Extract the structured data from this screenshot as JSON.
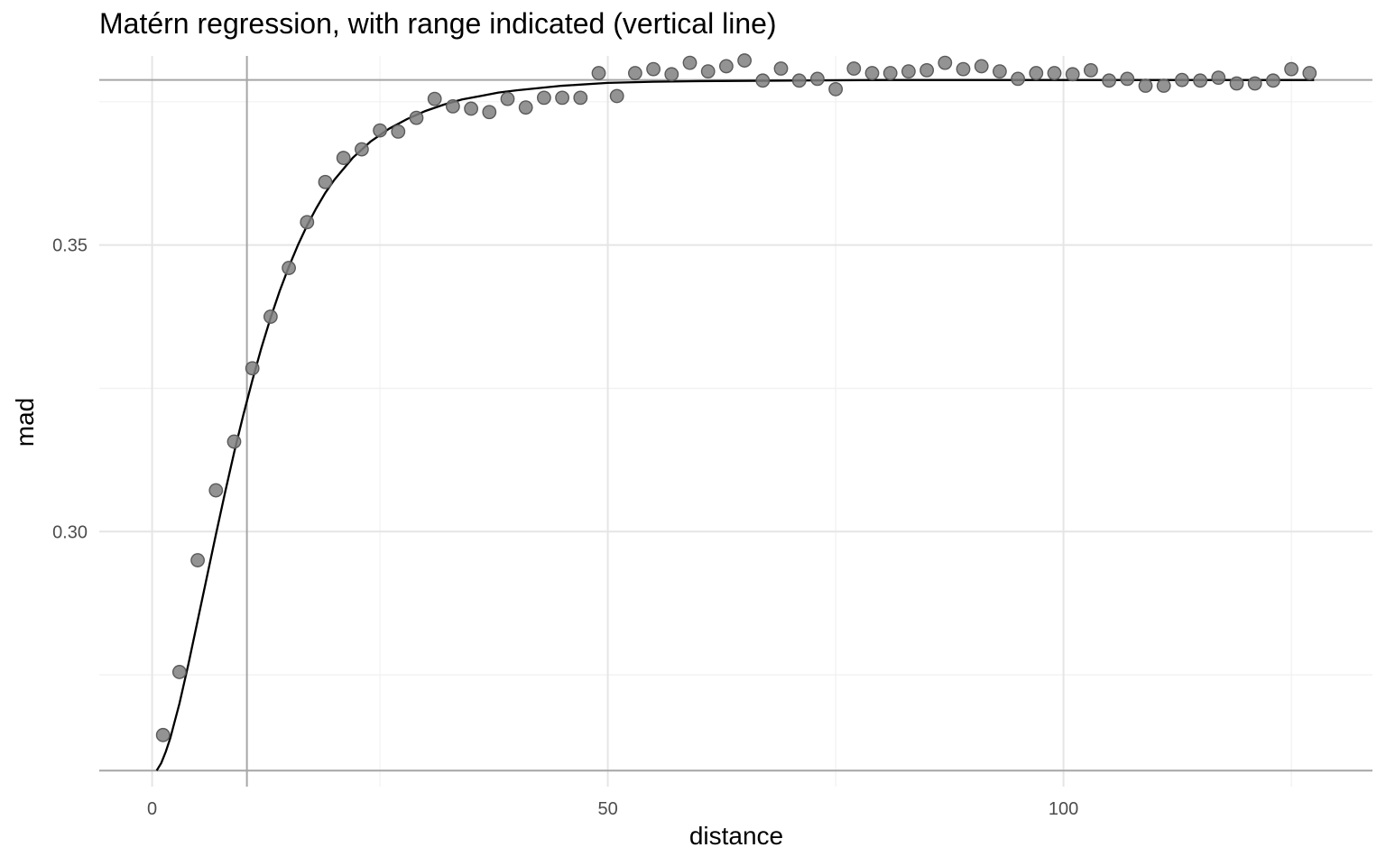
{
  "chart_data": {
    "type": "scatter",
    "title": "Matérn regression, with range indicated (vertical line)",
    "xlabel": "distance",
    "ylabel": "mad",
    "xlim": [
      -5.8,
      133.9
    ],
    "ylim": [
      0.2555,
      0.383
    ],
    "x_ticks": [
      0,
      50,
      100
    ],
    "x_tick_labels": [
      "0",
      "50",
      "100"
    ],
    "y_ticks": [
      0.3,
      0.35
    ],
    "y_tick_labels": [
      "0.30",
      "0.35"
    ],
    "x_minor_gridlines": [
      25,
      75,
      125
    ],
    "y_minor_gridlines": [
      0.275,
      0.325,
      0.375
    ],
    "grid": true,
    "legend": "none",
    "point_color": "#808080",
    "curve_color": "#000000",
    "reference_line_color": "#a6a6a6",
    "range_line_x": 10.4,
    "horizontal_reference_lines": [
      0.3788,
      0.2583
    ],
    "points": {
      "x": [
        1.2,
        3.0,
        5.0,
        7.0,
        9.0,
        11.0,
        13.0,
        15.0,
        17.0,
        19.0,
        21.0,
        23.0,
        25.0,
        27.0,
        29.0,
        31.0,
        33.0,
        35.0,
        37.0,
        39.0,
        41.0,
        43.0,
        45.0,
        47.0,
        49.0,
        51.0,
        53.0,
        55.0,
        57.0,
        59.0,
        61.0,
        63.0,
        65.0,
        67.0,
        69.0,
        71.0,
        73.0,
        75.0,
        77.0,
        79.0,
        81.0,
        83.0,
        85.0,
        87.0,
        89.0,
        91.0,
        93.0,
        95.0,
        97.0,
        99.0,
        101.0,
        103.0,
        105.0,
        107.0,
        109.0,
        111.0,
        113.0,
        115.0,
        117.0,
        119.0,
        121.0,
        123.0,
        125.0,
        127.0
      ],
      "y": [
        0.2645,
        0.2755,
        0.295,
        0.3072,
        0.3157,
        0.3285,
        0.3375,
        0.346,
        0.354,
        0.361,
        0.3652,
        0.3667,
        0.37,
        0.3698,
        0.3722,
        0.3755,
        0.3742,
        0.3738,
        0.3732,
        0.3755,
        0.374,
        0.3757,
        0.3757,
        0.3757,
        0.38,
        0.376,
        0.38,
        0.3807,
        0.3798,
        0.3818,
        0.3803,
        0.3812,
        0.3822,
        0.3787,
        0.3808,
        0.3787,
        0.379,
        0.3772,
        0.3808,
        0.38,
        0.38,
        0.3803,
        0.3805,
        0.3818,
        0.3807,
        0.3812,
        0.3803,
        0.379,
        0.38,
        0.38,
        0.3798,
        0.3805,
        0.3787,
        0.379,
        0.3778,
        0.3778,
        0.3788,
        0.3787,
        0.3792,
        0.3782,
        0.3782,
        0.3787,
        0.3807,
        0.38
      ]
    },
    "fitted_curve": {
      "model": "Matérn",
      "x": [
        0.5,
        1.0,
        1.5,
        2.0,
        3.0,
        4.0,
        5.0,
        6.0,
        7.0,
        8.0,
        9.0,
        10.0,
        11.0,
        12.0,
        13.0,
        14.0,
        15.0,
        16.0,
        17.0,
        18.0,
        19.0,
        20.0,
        22.0,
        24.0,
        26.0,
        28.0,
        30.0,
        32.0,
        34.0,
        36.0,
        38.0,
        40.0,
        45.0,
        50.0,
        55.0,
        60.0,
        70.0,
        80.0,
        90.0,
        100.0,
        110.0,
        120.0,
        127.5
      ],
      "y": [
        0.2583,
        0.2596,
        0.2616,
        0.264,
        0.27,
        0.277,
        0.2845,
        0.292,
        0.2995,
        0.3068,
        0.3138,
        0.3203,
        0.3264,
        0.3321,
        0.3373,
        0.342,
        0.3462,
        0.35,
        0.3534,
        0.3564,
        0.3591,
        0.3614,
        0.3652,
        0.3681,
        0.3703,
        0.372,
        0.3734,
        0.3745,
        0.3754,
        0.376,
        0.3766,
        0.377,
        0.3778,
        0.3783,
        0.3785,
        0.3786,
        0.3787,
        0.3788,
        0.3788,
        0.3788,
        0.3788,
        0.3788,
        0.3788
      ]
    }
  }
}
